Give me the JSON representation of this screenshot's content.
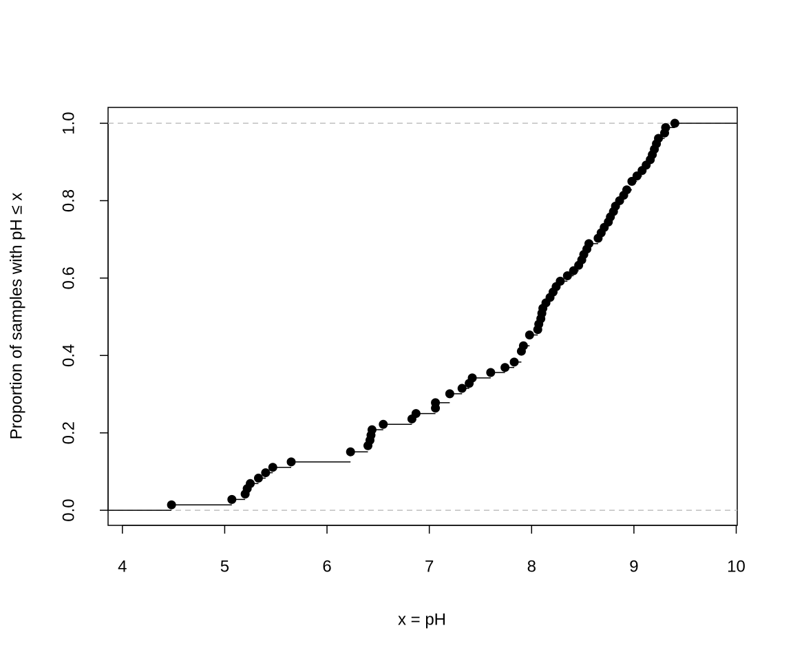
{
  "chart_data": {
    "type": "ecdf",
    "x_label": "x = pH",
    "y_label": "Proportion of samples with pH ≤ x",
    "color": "#000000",
    "hline_color": "#bebebe",
    "hlines": [
      0,
      1
    ],
    "xlim": [
      3.86,
      10.01
    ],
    "ylim": [
      -0.039,
      1.041
    ],
    "xticks": [
      4,
      5,
      6,
      7,
      8,
      9,
      10
    ],
    "yticks": [
      {
        "value": 0,
        "label": "0.0"
      },
      {
        "value": 0.2,
        "label": "0.2"
      },
      {
        "value": 0.4,
        "label": "0.4"
      },
      {
        "value": 0.6,
        "label": "0.6"
      },
      {
        "value": 0.8,
        "label": "0.8"
      },
      {
        "value": 1,
        "label": "1.0"
      }
    ],
    "x": [
      4.48,
      5.07,
      5.2,
      5.22,
      5.25,
      5.33,
      5.4,
      5.47,
      5.65,
      6.23,
      6.4,
      6.42,
      6.43,
      6.44,
      6.55,
      6.83,
      6.87,
      7.06,
      7.06,
      7.2,
      7.32,
      7.39,
      7.42,
      7.6,
      7.74,
      7.83,
      7.9,
      7.92,
      7.98,
      8.06,
      8.07,
      8.09,
      8.1,
      8.11,
      8.14,
      8.18,
      8.21,
      8.24,
      8.28,
      8.35,
      8.41,
      8.46,
      8.49,
      8.51,
      8.54,
      8.56,
      8.65,
      8.68,
      8.71,
      8.75,
      8.77,
      8.8,
      8.82,
      8.86,
      8.9,
      8.93,
      8.98,
      9.03,
      9.08,
      9.12,
      9.16,
      9.18,
      9.2,
      9.22,
      9.24,
      9.3,
      9.31,
      9.4
    ],
    "y": [
      0.014,
      0.028,
      0.042,
      0.056,
      0.069,
      0.083,
      0.097,
      0.111,
      0.125,
      0.151,
      0.167,
      0.181,
      0.194,
      0.208,
      0.222,
      0.236,
      0.25,
      0.264,
      0.278,
      0.301,
      0.315,
      0.328,
      0.342,
      0.356,
      0.369,
      0.383,
      0.411,
      0.425,
      0.453,
      0.467,
      0.481,
      0.495,
      0.509,
      0.522,
      0.536,
      0.55,
      0.564,
      0.578,
      0.592,
      0.606,
      0.619,
      0.633,
      0.647,
      0.661,
      0.675,
      0.689,
      0.703,
      0.717,
      0.731,
      0.745,
      0.758,
      0.772,
      0.786,
      0.8,
      0.814,
      0.828,
      0.85,
      0.864,
      0.878,
      0.892,
      0.906,
      0.919,
      0.933,
      0.947,
      0.961,
      0.975,
      0.989,
      1.0
    ]
  }
}
